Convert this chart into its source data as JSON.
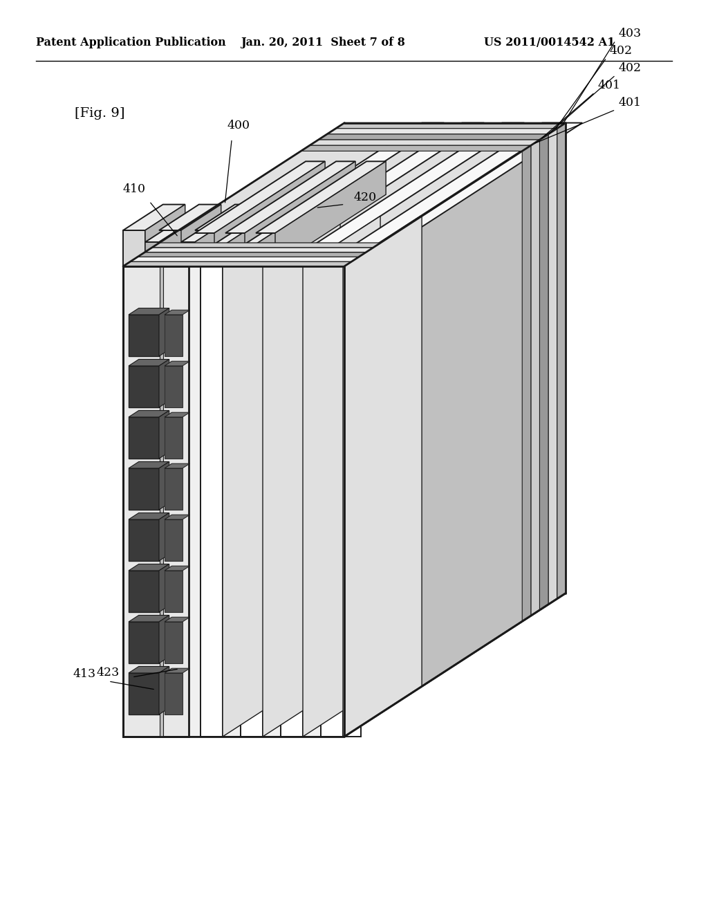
{
  "background_color": "#ffffff",
  "line_color": "#1a1a1a",
  "header_left": "Patent Application Publication",
  "header_mid": "Jan. 20, 2011  Sheet 7 of 8",
  "header_right": "US 2011/0014542 A1",
  "fig_label": "[Fig. 9]",
  "label_400": "400",
  "label_410": "410",
  "label_420": "420",
  "label_401a": "401",
  "label_402a": "402",
  "label_403": "403",
  "label_402b": "402",
  "label_401b": "401",
  "label_413": "413",
  "label_423": "423",
  "fill_white": "#ffffff",
  "fill_light": "#f0f0f0",
  "fill_mid": "#e0e0e0",
  "fill_dark": "#c0c0c0",
  "fill_darker": "#a8a8a8",
  "fill_hole": "#404040",
  "fill_stripe1": "#d8d8d8",
  "fill_stripe2": "#b8b8b8",
  "fill_stripe3": "#989898"
}
